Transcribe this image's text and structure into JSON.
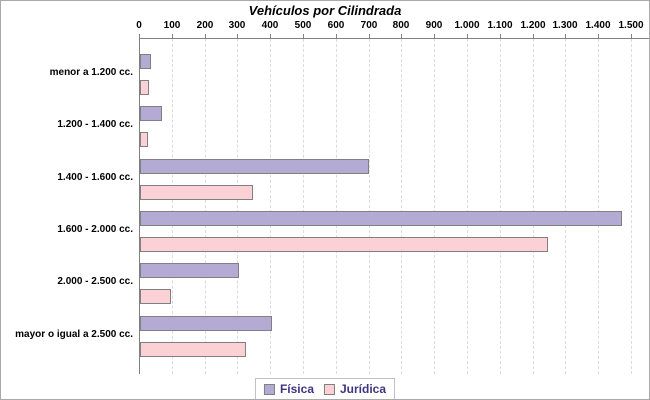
{
  "chart_data": {
    "type": "bar",
    "orientation": "horizontal",
    "title": "Vehículos por Cilindrada",
    "categories": [
      "menor a 1.200 cc.",
      "1.200 - 1.400 cc.",
      "1.400 - 1.600 cc.",
      "1.600 - 2.000 cc.",
      "2.000 - 2.500 cc.",
      "mayor o igual a 2.500 cc."
    ],
    "series": [
      {
        "name": "Física",
        "color": "#b3abd3",
        "values": [
          30,
          65,
          695,
          1465,
          300,
          400
        ]
      },
      {
        "name": "Jurídica",
        "color": "#fbd1d5",
        "values": [
          25,
          20,
          340,
          1240,
          90,
          320
        ]
      }
    ],
    "xlim": [
      0,
      1500
    ],
    "x_tick_interval": 100,
    "x_tick_labels": [
      "0",
      "100",
      "200",
      "300",
      "400",
      "500",
      "600",
      "700",
      "800",
      "900",
      "1.000",
      "1.100",
      "1.200",
      "1.300",
      "1.400",
      "1.500"
    ],
    "grid": "vertical-dashed",
    "legend_position": "bottom-center",
    "colors": {
      "bar_border": "#808080",
      "axis": "#808080",
      "grid": "#dcdcdc",
      "title_text": "#000000",
      "tick_text": "#000000",
      "legend_text": "#3f3580",
      "background": "#ffffff"
    }
  }
}
